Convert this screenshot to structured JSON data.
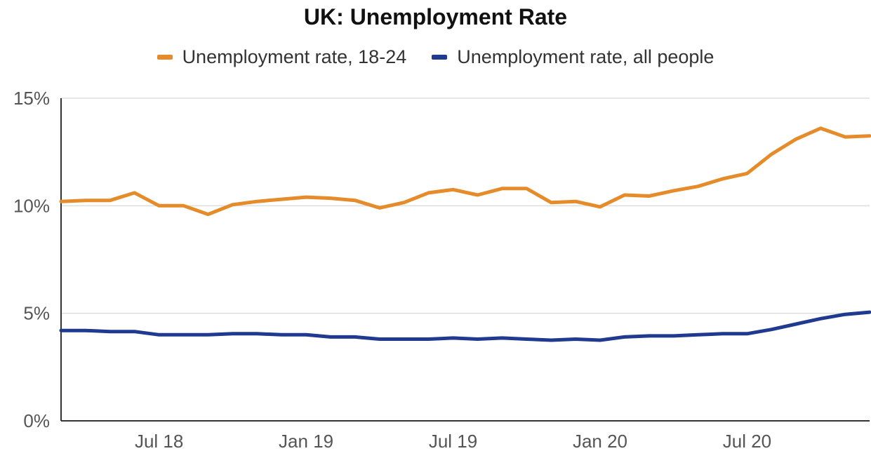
{
  "chart_data": {
    "type": "line",
    "title": "UK: Unemployment Rate",
    "xlabel": "",
    "ylabel": "",
    "ylim": [
      0,
      15
    ],
    "yticks": [
      "0%",
      "5%",
      "10%",
      "15%"
    ],
    "yticks_values": [
      0,
      5,
      10,
      15
    ],
    "xtick_labels": [
      "Jul 18",
      "Jan 19",
      "Jul 19",
      "Jan 20",
      "Jul 20"
    ],
    "xtick_indices": [
      4,
      10,
      16,
      22,
      28
    ],
    "grid": true,
    "legend_position": "top",
    "x": [
      "Mar 18",
      "Apr 18",
      "May 18",
      "Jun 18",
      "Jul 18",
      "Aug 18",
      "Sep 18",
      "Oct 18",
      "Nov 18",
      "Dec 18",
      "Jan 19",
      "Feb 19",
      "Mar 19",
      "Apr 19",
      "May 19",
      "Jun 19",
      "Jul 19",
      "Aug 19",
      "Sep 19",
      "Oct 19",
      "Nov 19",
      "Dec 19",
      "Jan 20",
      "Feb 20",
      "Mar 20",
      "Apr 20",
      "May 20",
      "Jun 20",
      "Jul 20",
      "Aug 20",
      "Sep 20",
      "Oct 20",
      "Nov 20",
      "Dec 20"
    ],
    "series": [
      {
        "name": "Unemployment rate, 18-24",
        "color": "#e58b2a",
        "values": [
          10.2,
          10.25,
          10.25,
          10.6,
          10.0,
          10.0,
          9.6,
          10.05,
          10.2,
          10.3,
          10.4,
          10.35,
          10.25,
          9.9,
          10.15,
          10.6,
          10.75,
          10.5,
          10.8,
          10.8,
          10.15,
          10.2,
          9.95,
          10.5,
          10.45,
          10.7,
          10.9,
          11.25,
          11.5,
          12.4,
          13.1,
          13.6,
          13.2,
          13.25
        ]
      },
      {
        "name": "Unemployment rate, all people",
        "color": "#1f3a8f",
        "values": [
          4.2,
          4.2,
          4.15,
          4.15,
          4.0,
          4.0,
          4.0,
          4.05,
          4.05,
          4.0,
          4.0,
          3.9,
          3.9,
          3.8,
          3.8,
          3.8,
          3.85,
          3.8,
          3.85,
          3.8,
          3.75,
          3.8,
          3.75,
          3.9,
          3.95,
          3.95,
          4.0,
          4.05,
          4.05,
          4.25,
          4.5,
          4.75,
          4.95,
          5.05
        ]
      }
    ]
  }
}
